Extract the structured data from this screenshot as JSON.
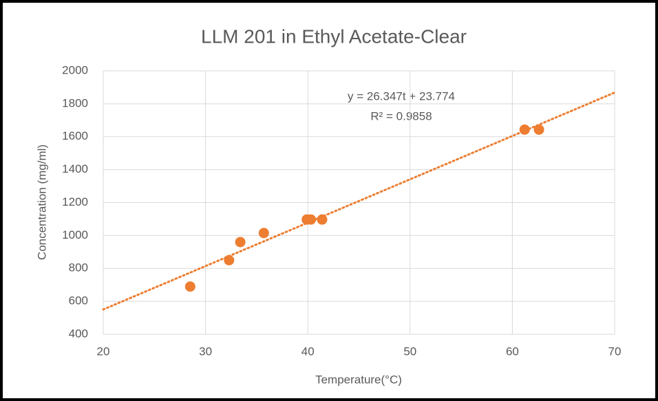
{
  "chart_data": {
    "type": "scatter",
    "title": "LLM 201 in Ethyl Acetate-Clear",
    "x_label": "Temperature(°C)",
    "y_label": "Concentration (mg/ml)",
    "x": [
      28.5,
      32.3,
      33.4,
      35.7,
      39.9,
      40.3,
      41.4,
      61.2,
      62.6
    ],
    "values": [
      690,
      850,
      960,
      1015,
      1097,
      1097,
      1097,
      1643,
      1643
    ],
    "color": "#ed7d31",
    "xlim": [
      20,
      70
    ],
    "xticks": [
      20,
      30,
      40,
      50,
      60,
      70
    ],
    "ylim": [
      400,
      2000
    ],
    "yticks": [
      400,
      600,
      800,
      1000,
      1200,
      1400,
      1600,
      1800,
      2000
    ],
    "grid": true,
    "trendline": {
      "slope": 26.347,
      "intercept": 23.774,
      "equation": "y = 26.347t + 23.774",
      "r_squared": "R² = 0.9858"
    }
  }
}
